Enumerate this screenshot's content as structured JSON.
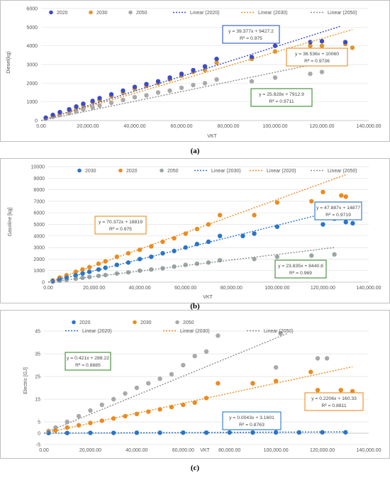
{
  "charts": [
    {
      "caption": "(a)",
      "ylabel": "Diesel(kg)",
      "xlabel": "VKT",
      "yticks": [
        "0",
        "1000",
        "2000",
        "3000",
        "4000",
        "5000",
        "6000"
      ],
      "xticks": [
        "0.00",
        "20,000.00",
        "40,000.00",
        "60,000.00",
        "80,000.00",
        "100,000.00",
        "120,000.00",
        "140,000.00"
      ],
      "legend": [
        "2020",
        "2030",
        "2050",
        "Linear (2020)",
        "Linear (2030)",
        "Linear (2050)"
      ],
      "equations": [
        {
          "line1": "y = 39.377x + 9427.2",
          "line2": "R² = 0.975",
          "color": "#2a55c7"
        },
        {
          "line1": "y = 36.536x + 10060",
          "line2": "R² = 0.9736",
          "color": "#ec8b1e"
        },
        {
          "line1": "y = 25.828x + 7912.9",
          "line2": "R² = 0.9711",
          "color": "#3a8a2f"
        }
      ]
    },
    {
      "caption": "(b)",
      "ylabel": "Gasoline [kg]",
      "xlabel": "VKT",
      "yticks": [
        "0",
        "1000",
        "2000",
        "3000",
        "4000",
        "5000",
        "6000",
        "7000",
        "8000",
        "9000",
        "10000"
      ],
      "xticks": [
        "0.00",
        "20,000.00",
        "40,000.00",
        "60,000.00",
        "80,000.00",
        "100,000.00",
        "120,000.00",
        "140,000.00"
      ],
      "legend": [
        "2030",
        "2020",
        "2050",
        "Linear (2030)",
        "Linear (2020)",
        "Linear (2050)"
      ],
      "equations": [
        {
          "line1": "y = 70.372x + 18819",
          "line2": "R² = 0.975",
          "color": "#ec8b1e"
        },
        {
          "line1": "y = 47.887x + 14877",
          "line2": "R² = 0.9719",
          "color": "#2a75c7"
        },
        {
          "line1": "y = 23.835x + 8440.8",
          "line2": "R² = 0.969",
          "color": "#3a8a2f"
        }
      ]
    },
    {
      "caption": "(c)",
      "ylabel": "Electric [GJ]",
      "xlabel": "VKT",
      "yticks": [
        "-5",
        "0",
        "5",
        "15",
        "25",
        "35",
        "45"
      ],
      "xticks": [
        "0.00",
        "20,000.00",
        "40,000.00",
        "60,000.00",
        "80,000.00",
        "100,000.00",
        "120,000.00",
        "140,000.00"
      ],
      "legend": [
        "2020",
        "2030",
        "2050",
        "Linear (2020)",
        "Linear (2030)",
        "Linear (2050)"
      ],
      "equations": [
        {
          "line1": "y = 0.421x + 288.22",
          "line2": "R² = 0.8885",
          "color": "#3a8a2f"
        },
        {
          "line1": "y = 0.0043x + 3.1601",
          "line2": "R² = 0.8763",
          "color": "#2a75c7"
        },
        {
          "line1": "y = 0.2206x + 160.33",
          "line2": "R² = 0.8811",
          "color": "#ec8b1e"
        }
      ]
    }
  ],
  "chart_data": [
    {
      "type": "scatter",
      "ylabel": "Diesel(kg)",
      "xlabel": "VKT",
      "xlim": [
        0,
        140000
      ],
      "ylim": [
        0,
        6000
      ],
      "series": [
        {
          "name": "2020",
          "color": "#3b4bc8",
          "x": [
            2000,
            5000,
            8000,
            12000,
            15000,
            18000,
            22000,
            25000,
            30000,
            35000,
            40000,
            45000,
            50000,
            55000,
            60000,
            65000,
            70000,
            75000,
            90000,
            100000,
            115000,
            120000,
            130000
          ],
          "y": [
            150,
            300,
            450,
            600,
            750,
            900,
            1050,
            1200,
            1400,
            1600,
            1800,
            1950,
            2100,
            2300,
            2500,
            2700,
            2900,
            3300,
            3400,
            4000,
            4200,
            4250,
            4200
          ]
        },
        {
          "name": "2030",
          "color": "#e0962a",
          "x": [
            2000,
            5000,
            8000,
            12000,
            15000,
            18000,
            22000,
            25000,
            30000,
            35000,
            40000,
            45000,
            50000,
            55000,
            60000,
            65000,
            70000,
            75000,
            90000,
            100000,
            115000,
            120000,
            130000,
            133000
          ],
          "y": [
            130,
            280,
            420,
            560,
            700,
            830,
            980,
            1100,
            1300,
            1500,
            1700,
            1850,
            2000,
            2200,
            2400,
            2600,
            2700,
            3100,
            3300,
            3700,
            4000,
            4000,
            4100,
            3900
          ]
        },
        {
          "name": "2050",
          "color": "#a9a9a9",
          "x": [
            2000,
            5000,
            8000,
            12000,
            15000,
            18000,
            22000,
            25000,
            30000,
            35000,
            40000,
            45000,
            50000,
            55000,
            60000,
            65000,
            70000,
            75000,
            90000,
            100000,
            115000,
            120000
          ],
          "y": [
            100,
            200,
            300,
            400,
            500,
            600,
            700,
            800,
            950,
            1100,
            1250,
            1350,
            1500,
            1600,
            1750,
            1900,
            2000,
            2200,
            2100,
            2300,
            2500,
            2600
          ]
        }
      ],
      "trendlines": [
        {
          "name": "Linear (2020)",
          "color": "#3b4bc8",
          "x": [
            0,
            128000
          ],
          "y": [
            0,
            5050
          ]
        },
        {
          "name": "Linear (2030)",
          "color": "#e0962a",
          "x": [
            0,
            133000
          ],
          "y": [
            0,
            4870
          ]
        },
        {
          "name": "Linear (2050)",
          "color": "#8c8c8c",
          "x": [
            0,
            125000
          ],
          "y": [
            0,
            3230
          ]
        }
      ]
    },
    {
      "type": "scatter",
      "ylabel": "Gasoline [kg]",
      "xlabel": "VKT",
      "xlim": [
        0,
        140000
      ],
      "ylim": [
        0,
        10000
      ],
      "series": [
        {
          "name": "2030",
          "color": "#2a75c7",
          "x": [
            2000,
            5000,
            8000,
            12000,
            15000,
            18000,
            22000,
            25000,
            30000,
            35000,
            40000,
            45000,
            50000,
            55000,
            60000,
            65000,
            70000,
            75000,
            85000,
            90000,
            100000,
            120000,
            125000,
            130000,
            133000
          ],
          "y": [
            100,
            250,
            400,
            600,
            750,
            900,
            1100,
            1250,
            1500,
            1700,
            2000,
            2200,
            2500,
            2700,
            3000,
            3300,
            3500,
            4000,
            4000,
            4200,
            4800,
            5000,
            5500,
            5200,
            5100
          ]
        },
        {
          "name": "2020",
          "color": "#ec8b1e",
          "x": [
            2000,
            5000,
            8000,
            12000,
            15000,
            18000,
            22000,
            25000,
            30000,
            35000,
            40000,
            45000,
            50000,
            55000,
            60000,
            65000,
            70000,
            75000,
            90000,
            100000,
            115000,
            120000,
            128000,
            130000
          ],
          "y": [
            150,
            400,
            600,
            900,
            1100,
            1300,
            1600,
            1800,
            2200,
            2500,
            2800,
            3100,
            3500,
            3800,
            4200,
            4600,
            5000,
            5800,
            5800,
            6900,
            7000,
            7800,
            7500,
            7400
          ]
        },
        {
          "name": "2050",
          "color": "#9aa6a6",
          "x": [
            2000,
            5000,
            8000,
            12000,
            15000,
            18000,
            22000,
            25000,
            30000,
            35000,
            40000,
            45000,
            50000,
            55000,
            60000,
            65000,
            70000,
            75000,
            90000,
            100000,
            115000,
            125000
          ],
          "y": [
            50,
            130,
            200,
            300,
            380,
            450,
            550,
            620,
            750,
            850,
            1000,
            1100,
            1200,
            1350,
            1500,
            1600,
            1700,
            1900,
            2000,
            2200,
            2300,
            2400
          ]
        }
      ],
      "trendlines": [
        {
          "name": "Linear (2030)",
          "color": "#2a75c7",
          "x": [
            0,
            130000
          ],
          "y": [
            0,
            6400
          ]
        },
        {
          "name": "Linear (2020)",
          "color": "#ec8b1e",
          "x": [
            0,
            130000
          ],
          "y": [
            0,
            9300
          ]
        },
        {
          "name": "Linear (2050)",
          "color": "#8c8c8c",
          "x": [
            0,
            125000
          ],
          "y": [
            0,
            3000
          ]
        }
      ]
    },
    {
      "type": "scatter",
      "ylabel": "Electric [GJ]",
      "xlabel": "VKT",
      "xlim": [
        0,
        140000
      ],
      "ylim": [
        -5,
        45
      ],
      "series": [
        {
          "name": "2020",
          "color": "#2a75c7",
          "x": [
            2000,
            10000,
            20000,
            30000,
            40000,
            50000,
            60000,
            70000,
            80000,
            90000,
            100000,
            110000,
            120000,
            130000
          ],
          "y": [
            0.1,
            0.1,
            0.15,
            0.15,
            0.2,
            0.2,
            0.25,
            0.25,
            0.3,
            0.3,
            0.35,
            0.35,
            0.4,
            0.4
          ]
        },
        {
          "name": "2030",
          "color": "#ec8b1e",
          "x": [
            2000,
            5000,
            10000,
            15000,
            20000,
            25000,
            30000,
            35000,
            40000,
            45000,
            50000,
            55000,
            60000,
            65000,
            70000,
            75000,
            90000,
            100000,
            115000,
            118000,
            128000,
            133000
          ],
          "y": [
            0.5,
            1.2,
            2.5,
            3.5,
            4.5,
            5.5,
            6.5,
            7.5,
            8.5,
            9.5,
            10.5,
            11.5,
            12.5,
            13.5,
            15.5,
            22,
            22,
            23,
            27,
            19,
            19,
            18.5
          ]
        },
        {
          "name": "2050",
          "color": "#a9a9a9",
          "x": [
            2000,
            5000,
            10000,
            15000,
            20000,
            25000,
            30000,
            35000,
            40000,
            45000,
            50000,
            55000,
            60000,
            65000,
            70000,
            75000,
            90000,
            100000,
            102000,
            118000,
            122000
          ],
          "y": [
            1,
            2.5,
            5,
            7.5,
            10,
            12.5,
            15,
            17.5,
            20,
            22,
            24,
            26,
            30,
            34,
            36,
            43,
            22,
            29,
            44,
            33,
            33
          ]
        }
      ],
      "trendlines": [
        {
          "name": "Linear (2020)",
          "color": "#2a75c7",
          "x": [
            0,
            130000
          ],
          "y": [
            0,
            0.6
          ]
        },
        {
          "name": "Linear (2030)",
          "color": "#ec8b1e",
          "x": [
            0,
            133000
          ],
          "y": [
            0,
            29.3
          ]
        },
        {
          "name": "Linear (2050)",
          "color": "#8c8c8c",
          "x": [
            0,
            105000
          ],
          "y": [
            0,
            44
          ]
        }
      ]
    }
  ]
}
